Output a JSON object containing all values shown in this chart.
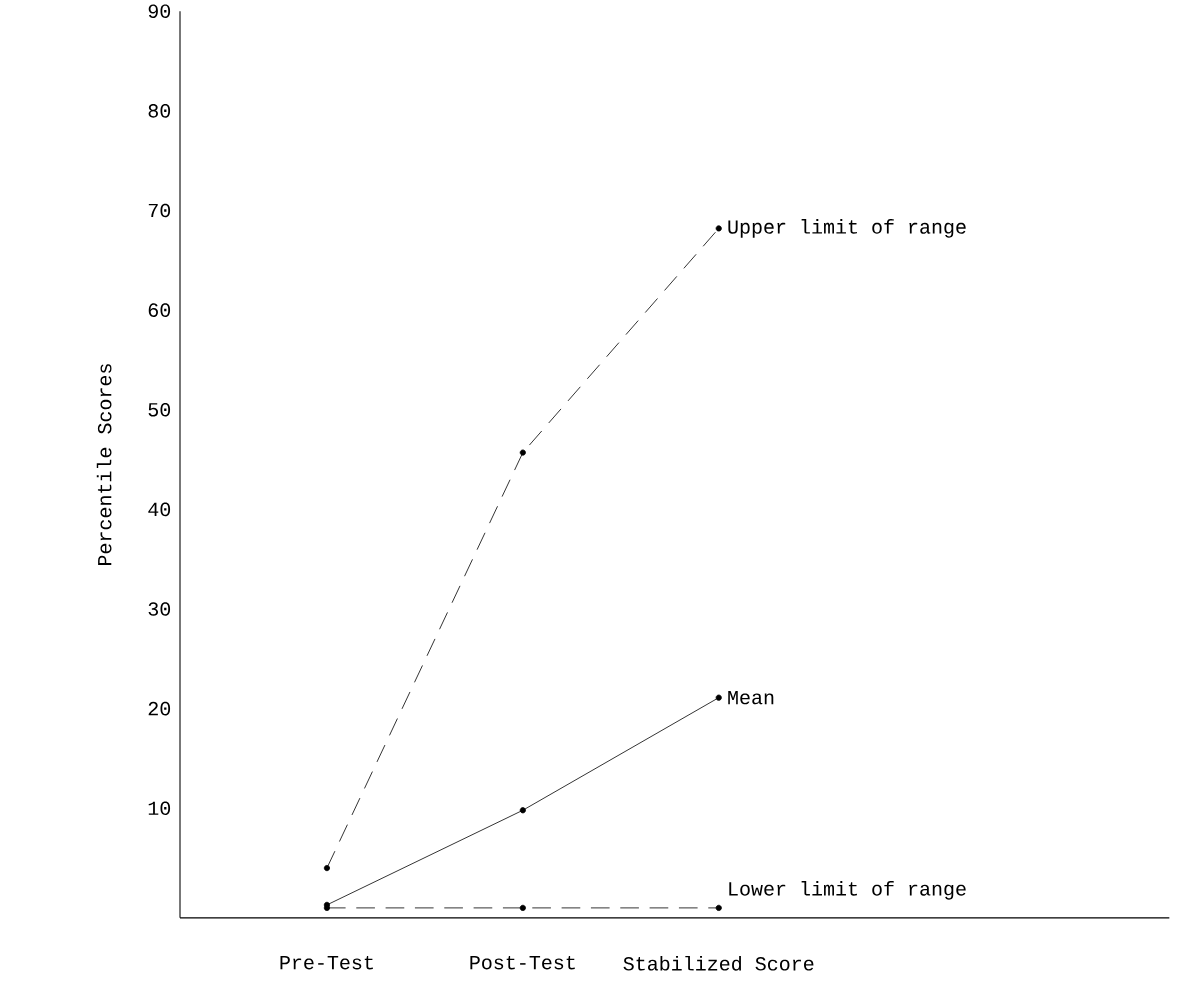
{
  "chart_data": {
    "type": "line",
    "ylabel": "Percentile Scores",
    "categories": [
      "Pre-Test",
      "Post-Test",
      "Stabilized Score"
    ],
    "series": [
      {
        "name": "Upper limit of range",
        "color": "#000000",
        "line_style": "dashed",
        "values": [
          4,
          45.7,
          68.2
        ]
      },
      {
        "name": "Mean",
        "color": "#000000",
        "line_style": "solid",
        "values": [
          0.3,
          9.8,
          21.1
        ]
      },
      {
        "name": "Lower limit of range",
        "color": "#000000",
        "line_style": "dashed",
        "values": [
          0,
          0,
          0
        ]
      }
    ],
    "ylim": [
      -1,
      90
    ],
    "yticks": [
      10,
      20,
      30,
      40,
      50,
      60,
      70,
      80,
      90
    ],
    "marker": "circle"
  }
}
